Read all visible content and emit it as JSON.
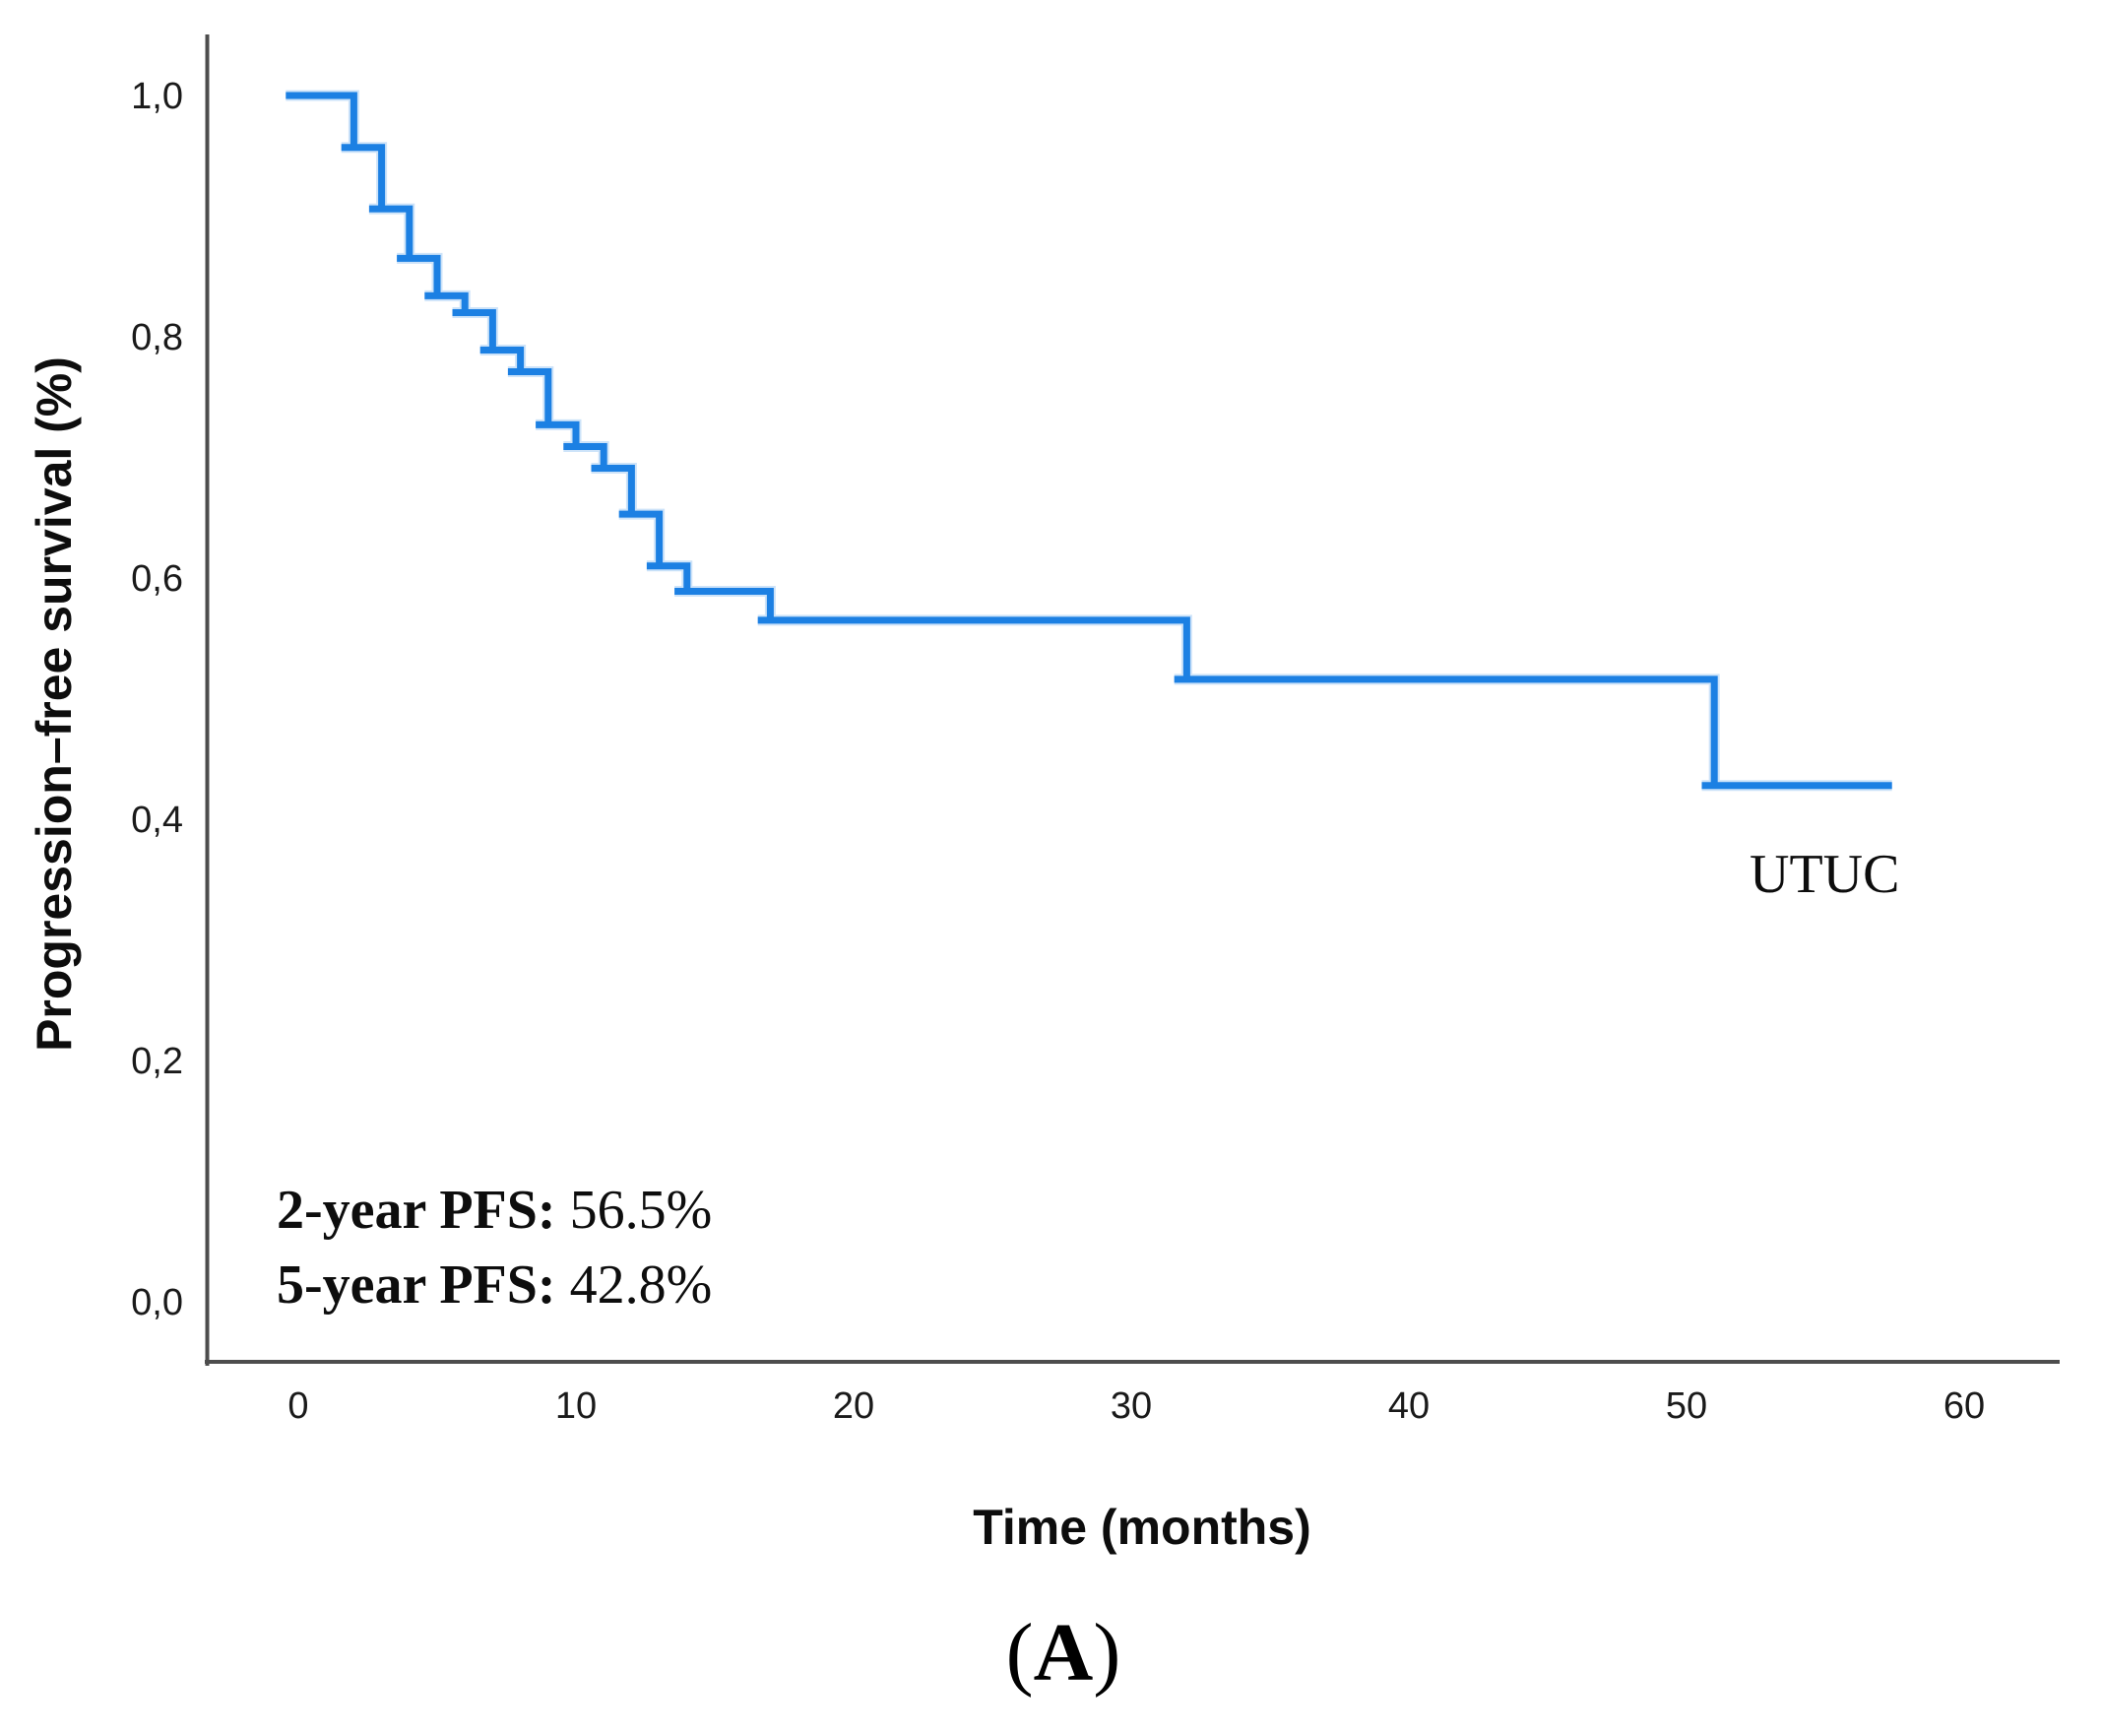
{
  "figure": {
    "caption_open": "(",
    "caption_letter": "A",
    "caption_close": ")"
  },
  "chart_data": {
    "type": "line",
    "subtype": "kaplan-meier-step-curve",
    "title": "",
    "xlabel": "Time (months)",
    "ylabel": "Progression–free survival (%)",
    "series_label": "UTUC",
    "line_color": "#1c80e3",
    "axis_color": "#4d4d4d",
    "tick_text_color": "#1a1a1a",
    "xticks": [
      0,
      10,
      20,
      30,
      40,
      50,
      60
    ],
    "ytick_labels": [
      "0,0",
      "0,2",
      "0,4",
      "0,6",
      "0,8",
      "1,0"
    ],
    "ytick_values": [
      0.0,
      0.2,
      0.4,
      0.6,
      0.8,
      1.0
    ],
    "xlim": [
      0,
      60
    ],
    "ylim": [
      0,
      1
    ],
    "legend_position": "none",
    "grid": false,
    "steps": [
      {
        "t": 0,
        "s": 1.0
      },
      {
        "t": 2,
        "s": 0.957
      },
      {
        "t": 3,
        "s": 0.906
      },
      {
        "t": 4,
        "s": 0.865
      },
      {
        "t": 5,
        "s": 0.834
      },
      {
        "t": 6,
        "s": 0.82
      },
      {
        "t": 7,
        "s": 0.789
      },
      {
        "t": 8,
        "s": 0.771
      },
      {
        "t": 9,
        "s": 0.727
      },
      {
        "t": 10,
        "s": 0.709
      },
      {
        "t": 11,
        "s": 0.691
      },
      {
        "t": 12,
        "s": 0.653
      },
      {
        "t": 13,
        "s": 0.61
      },
      {
        "t": 14,
        "s": 0.589
      },
      {
        "t": 17,
        "s": 0.565
      },
      {
        "t": 32,
        "s": 0.516
      },
      {
        "t": 51,
        "s": 0.428
      }
    ],
    "curve_end_t": 57.4,
    "step_overshoot_months": 0.45,
    "annotations": {
      "two_year_label": "2-year PFS:",
      "two_year_value": " 56.5%",
      "five_year_label": "5-year PFS:",
      "five_year_value": " 42.8%"
    }
  }
}
